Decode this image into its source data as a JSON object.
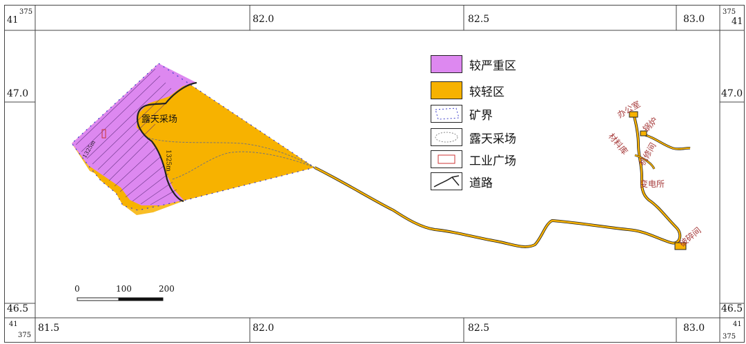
{
  "map": {
    "top_axis": [
      "82.0",
      "82.5",
      "83.0"
    ],
    "bottom_axis": [
      "81.5",
      "82.0",
      "82.5",
      "83.0"
    ],
    "left_axis": [
      "47.0",
      "46.5"
    ],
    "right_axis": [
      "47.0",
      "46.5"
    ],
    "corner_tl": {
      "a": "375",
      "b": "41"
    },
    "corner_tr": {
      "a": "375",
      "b": "41"
    },
    "corner_bl": {
      "a": "41",
      "b": "375"
    },
    "corner_br": {
      "a": "41",
      "b": "375"
    }
  },
  "legend": [
    {
      "label": "较严重区",
      "swatch": "severe",
      "color": "#dd88f0"
    },
    {
      "label": "较轻区",
      "swatch": "light",
      "color": "#f7b200"
    },
    {
      "label": "矿界",
      "swatch": "boundary",
      "color": "#3b3bc9"
    },
    {
      "label": "露天采场",
      "swatch": "pit",
      "color": "#888888"
    },
    {
      "label": "工业广场",
      "swatch": "industrial",
      "color": "#cc3333"
    },
    {
      "label": "道路",
      "swatch": "road",
      "color": "#222222"
    }
  ],
  "scale_bar": {
    "labels": [
      "0",
      "100",
      "200"
    ]
  },
  "features": {
    "pit_label": "露天采场",
    "pit_elev": "1325m",
    "pit_elev2": "1325m"
  },
  "buildings": [
    "办公室",
    "锅炉",
    "材料库",
    "机修间",
    "变电所",
    "破碎间"
  ]
}
